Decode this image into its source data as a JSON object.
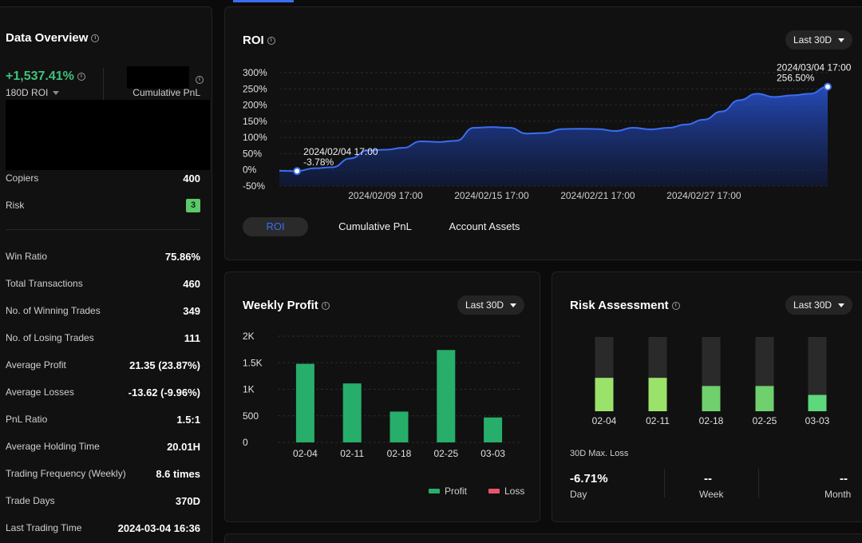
{
  "overview": {
    "title": "Data Overview",
    "roi_value": "+1,537.41%",
    "roi_label": "180D ROI",
    "pnl_label": "Cumulative PnL",
    "stats_top": [
      {
        "label": "Copiers",
        "value": "400"
      },
      {
        "label": "Risk",
        "value": "3"
      }
    ],
    "stats": [
      {
        "label": "Win Ratio",
        "value": "75.86%"
      },
      {
        "label": "Total Transactions",
        "value": "460"
      },
      {
        "label": "No. of Winning Trades",
        "value": "349"
      },
      {
        "label": "No. of Losing Trades",
        "value": "111"
      },
      {
        "label": "Average Profit",
        "value": "21.35 (23.87%)"
      },
      {
        "label": "Average Losses",
        "value": "-13.62 (-9.96%)"
      },
      {
        "label": "PnL Ratio",
        "value": "1.5:1"
      },
      {
        "label": "Average Holding Time",
        "value": "20.01H"
      },
      {
        "label": "Trading Frequency (Weekly)",
        "value": "8.6 times"
      },
      {
        "label": "Trade Days",
        "value": "370D"
      },
      {
        "label": "Last Trading Time",
        "value": "2024-03-04 16:36"
      }
    ]
  },
  "roi_panel": {
    "title": "ROI",
    "range": "Last 30D",
    "tabs": [
      "ROI",
      "Cumulative PnL",
      "Account Assets"
    ],
    "start_annotation": {
      "date": "2024/02/04 17:00",
      "value": "-3.78%"
    },
    "end_annotation": {
      "date": "2024/03/04 17:00",
      "value": "256.50%"
    }
  },
  "weekly_panel": {
    "title": "Weekly Profit",
    "range": "Last 30D",
    "legend": [
      "Profit",
      "Loss"
    ]
  },
  "risk_panel": {
    "title": "Risk Assessment",
    "range": "Last 30D",
    "max_loss_label": "30D Max. Loss",
    "day_value": "-6.71%",
    "day_label": "Day",
    "week_value": "--",
    "week_label": "Week",
    "month_value": "--",
    "month_label": "Month"
  },
  "chart_data": [
    {
      "type": "area",
      "title": "ROI",
      "y_tick_labels": [
        "300%",
        "250%",
        "200%",
        "150%",
        "100%",
        "50%",
        "0%",
        "-50%"
      ],
      "x_tick_labels": [
        "2024/02/09 17:00",
        "2024/02/15 17:00",
        "2024/02/21 17:00",
        "2024/02/27 17:00"
      ],
      "ylim": [
        -50,
        300
      ],
      "x_days": [
        -1,
        0,
        1,
        2,
        3,
        4,
        5,
        6,
        7,
        8,
        9,
        10,
        11,
        12,
        13,
        14,
        15,
        16,
        17,
        18,
        19,
        20,
        21,
        22,
        23,
        24,
        25,
        26,
        27,
        28,
        29,
        30
      ],
      "values": [
        -3,
        -3.78,
        5,
        8,
        35,
        60,
        62,
        68,
        88,
        86,
        90,
        130,
        132,
        130,
        112,
        114,
        126,
        127,
        126,
        120,
        130,
        125,
        130,
        140,
        155,
        180,
        215,
        235,
        225,
        230,
        235,
        256.5
      ],
      "x_axis_start": "2024/02/03 17:00",
      "color": "#3a6df0",
      "grid": true
    },
    {
      "type": "bar",
      "title": "Weekly Profit",
      "categories": [
        "02-04",
        "02-11",
        "02-18",
        "02-25",
        "03-03"
      ],
      "y_tick_labels": [
        "2K",
        "1.5K",
        "1K",
        "500",
        "0"
      ],
      "ylim": [
        0,
        2000
      ],
      "series": [
        {
          "name": "Profit",
          "color": "#27ae6b",
          "values": [
            1480,
            1110,
            580,
            1740,
            470
          ]
        },
        {
          "name": "Loss",
          "color": "#e8556d",
          "values": [
            0,
            0,
            0,
            0,
            0
          ]
        }
      ],
      "grid": true
    },
    {
      "type": "bar",
      "title": "Risk Assessment",
      "categories": [
        "02-04",
        "02-11",
        "02-18",
        "02-25",
        "03-03"
      ],
      "ylim": [
        0,
        5
      ],
      "values": [
        2.25,
        2.25,
        1.7,
        1.7,
        1.1
      ],
      "colors": [
        "#9be26a",
        "#9be26a",
        "#6fd06d",
        "#6fd06d",
        "#5ed87c"
      ],
      "track_color": "#2a2a2a"
    }
  ]
}
